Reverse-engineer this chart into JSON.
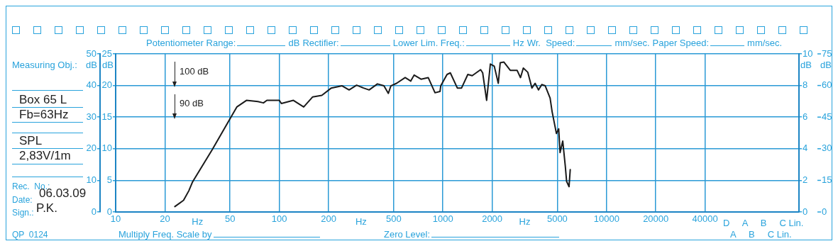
{
  "chart_data": {
    "type": "line",
    "xlabel": "Hz",
    "ylabel": "dB",
    "y2label": "dB",
    "y3label": "dB",
    "x": [
      23,
      26,
      28,
      29.5,
      39,
      50,
      55,
      63,
      74,
      80,
      84,
      100,
      103,
      122,
      141,
      160,
      182,
      208,
      242,
      267,
      297,
      327,
      354,
      398,
      436,
      464,
      481,
      521,
      588,
      636,
      667,
      735,
      813,
      895,
      960,
      970,
      1060,
      1110,
      1225,
      1300,
      1420,
      1510,
      1700,
      1750,
      1850,
      1950,
      2060,
      2180,
      2240,
      2360,
      2580,
      2840,
      2980,
      3100,
      3300,
      3500,
      3660,
      3840,
      4020,
      4220,
      4520,
      4650,
      4940,
      5100,
      5200,
      5400,
      5600,
      5700,
      5900,
      6000
    ],
    "series": [
      {
        "color": "#1a1a1a",
        "values": [
          1.7,
          3.7,
          6.7,
          9.5,
          19.8,
          29.5,
          33.2,
          35.3,
          34.9,
          34.5,
          35.3,
          35.3,
          34.3,
          35.3,
          33.2,
          36.4,
          36.9,
          39.2,
          39.9,
          38.6,
          40.1,
          39.2,
          38.6,
          40.5,
          39.9,
          37.5,
          39.9,
          40.7,
          42.5,
          41.4,
          43.3,
          42.0,
          42.5,
          37.7,
          38.1,
          39.9,
          43.5,
          44.0,
          39.2,
          39.2,
          43.5,
          43.1,
          45.0,
          44.0,
          35.3,
          46.8,
          46.1,
          40.7,
          47.2,
          47.4,
          44.8,
          44.8,
          42.5,
          45.5,
          44.2,
          39.2,
          40.7,
          38.6,
          40.3,
          39.9,
          36.0,
          31.7,
          24.8,
          26.3,
          18.8,
          22.4,
          14.4,
          9.7,
          8.0,
          13.4
        ]
      }
    ],
    "xlim": [
      10,
      150000
    ],
    "xticks": [
      10,
      20,
      50,
      100,
      200,
      500,
      1000,
      2000,
      5000,
      10000,
      20000,
      40000
    ],
    "ylim": [
      0,
      50
    ],
    "yticks": [
      0,
      10,
      20,
      30,
      40,
      50
    ],
    "y2lim": [
      0,
      25
    ],
    "y2ticks": [
      0,
      5,
      10,
      15,
      20,
      25
    ],
    "y3lim": [
      0,
      10
    ],
    "y3ticks": [
      0,
      2,
      4,
      6,
      8,
      10
    ],
    "log": "x",
    "grid": true,
    "marker": "none",
    "line_style": "solid",
    "annotations": [
      "100 dB",
      "90 dB",
      "75",
      "60",
      "45",
      "30",
      "15",
      "0",
      "dB",
      "Measuring Obj.:",
      "Box 65 L",
      "Fb=63Hz",
      "SPL",
      "2,83V/1m",
      "Rec.  No.:",
      "Date:",
      "06.03.09",
      "Sign.:",
      "P.K.",
      "QP  0124",
      "Potentiometer Range:",
      "dB",
      "Rectifier:",
      "Lower Lim. Freq.:",
      "Hz",
      "Wr.  Speed:",
      "mm/sec.",
      "Paper Speed:",
      "mm/sec.",
      "Multiply Freq. Scale by",
      "Zero Level:",
      "D     A     B     C Lin.",
      "A     B     C Lin."
    ]
  }
}
